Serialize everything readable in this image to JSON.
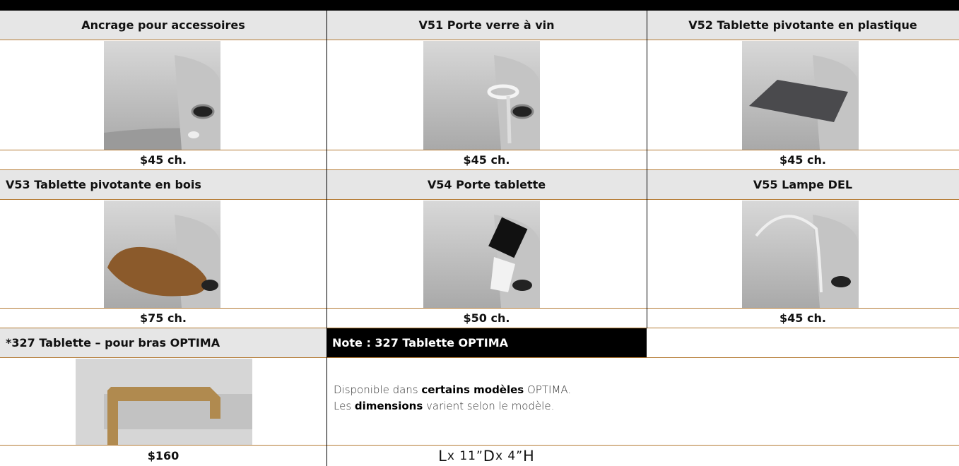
{
  "table": {
    "rows": [
      {
        "cells": [
          {
            "title": "Ancrage pour accessoires",
            "price": "$45 ch."
          },
          {
            "title": "V51 Porte verre à vin",
            "price": "$45 ch."
          },
          {
            "title": "V52 Tablette pivotante en plastique",
            "price": "$45 ch."
          }
        ]
      },
      {
        "cells": [
          {
            "title": "V53 Tablette pivotante en bois",
            "price": "$75 ch."
          },
          {
            "title": "V54 Porte tablette",
            "price": "$50 ch."
          },
          {
            "title": "V55 Lampe DEL",
            "price": "$45 ch."
          }
        ]
      }
    ],
    "optima": {
      "title": "*327 Tablette –  pour bras OPTIMA",
      "price": "$160"
    },
    "note": {
      "title": "Note : 327 Tablette OPTIMA",
      "line1": [
        "Disponible dans ",
        "certains modèles",
        " OPTIMA."
      ],
      "line2": [
        "Les ",
        "dimensions",
        " varient selon le modèle."
      ],
      "dimensions": [
        "L",
        " x  11”",
        " D",
        "  x 4”",
        " H"
      ]
    }
  }
}
